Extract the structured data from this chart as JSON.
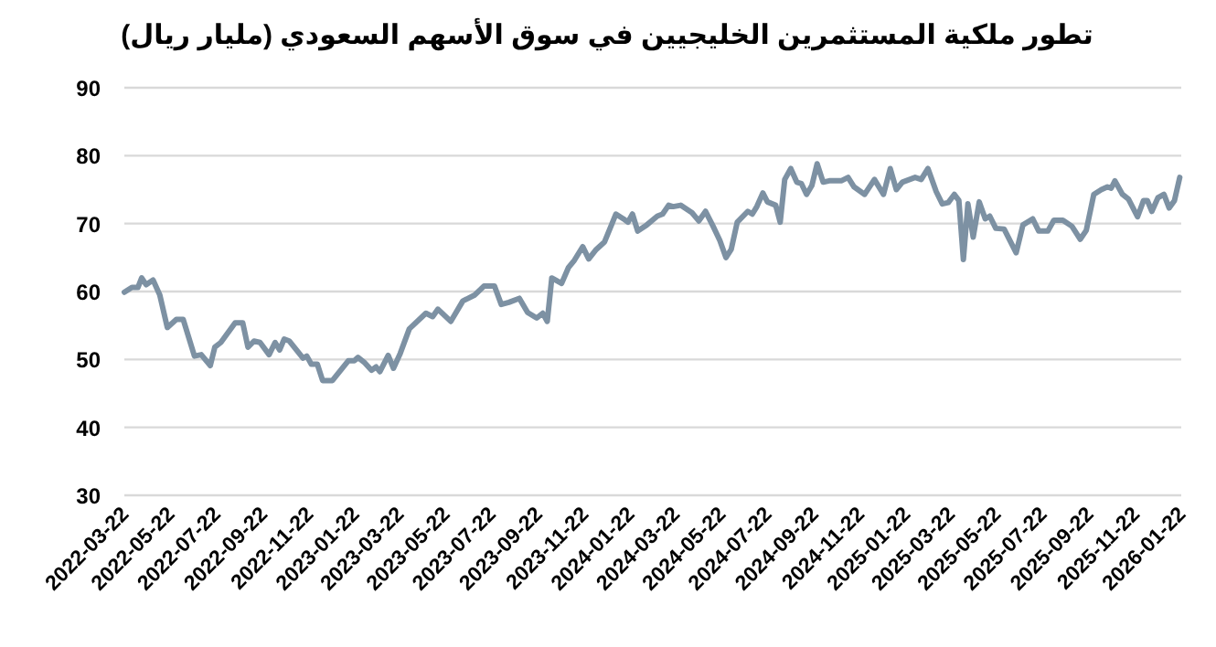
{
  "chart_data": {
    "type": "line",
    "title": "تطور ملكية المستثمرين الخليجيين في سوق الأسهم السعودي (مليار ريال)",
    "x": [
      "2022-03-22",
      "2022-04-01",
      "2022-04-09",
      "2022-04-14",
      "2022-04-20",
      "2022-04-29",
      "2022-05-08",
      "2022-05-18",
      "2022-05-30",
      "2022-06-08",
      "2022-06-23",
      "2022-07-02",
      "2022-07-14",
      "2022-07-20",
      "2022-07-28",
      "2022-08-16",
      "2022-08-26",
      "2022-09-02",
      "2022-09-10",
      "2022-09-18",
      "2022-09-30",
      "2022-10-08",
      "2022-10-14",
      "2022-10-20",
      "2022-10-27",
      "2022-11-14",
      "2022-11-19",
      "2022-11-25",
      "2022-12-03",
      "2022-12-10",
      "2022-12-23",
      "2023-01-13",
      "2023-01-21",
      "2023-01-26",
      "2023-02-03",
      "2023-02-13",
      "2023-02-19",
      "2023-02-24",
      "2023-03-07",
      "2023-03-14",
      "2023-03-23",
      "2023-04-04",
      "2023-04-26",
      "2023-05-05",
      "2023-05-12",
      "2023-05-29",
      "2023-06-14",
      "2023-06-30",
      "2023-07-12",
      "2023-07-26",
      "2023-08-04",
      "2023-08-14",
      "2023-08-28",
      "2023-09-08",
      "2023-09-20",
      "2023-09-28",
      "2023-10-04",
      "2023-10-10",
      "2023-10-23",
      "2023-11-01",
      "2023-11-09",
      "2023-11-20",
      "2023-11-28",
      "2023-12-08",
      "2023-12-19",
      "2024-01-03",
      "2024-01-13",
      "2024-01-19",
      "2024-01-25",
      "2024-02-01",
      "2024-02-13",
      "2024-02-27",
      "2024-03-05",
      "2024-03-13",
      "2024-03-19",
      "2024-03-29",
      "2024-04-13",
      "2024-04-22",
      "2024-05-01",
      "2024-05-11",
      "2024-05-20",
      "2024-05-28",
      "2024-06-04",
      "2024-06-12",
      "2024-06-26",
      "2024-07-02",
      "2024-07-08",
      "2024-07-16",
      "2024-07-22",
      "2024-08-02",
      "2024-08-08",
      "2024-08-14",
      "2024-08-22",
      "2024-08-30",
      "2024-09-05",
      "2024-09-12",
      "2024-09-19",
      "2024-09-26",
      "2024-10-04",
      "2024-10-12",
      "2024-10-28",
      "2024-11-06",
      "2024-11-14",
      "2024-11-28",
      "2024-12-11",
      "2024-12-23",
      "2025-01-01",
      "2025-01-09",
      "2025-01-17",
      "2025-02-03",
      "2025-02-11",
      "2025-02-20",
      "2025-03-03",
      "2025-03-11",
      "2025-03-19",
      "2025-03-27",
      "2025-04-02",
      "2025-04-08",
      "2025-04-14",
      "2025-04-21",
      "2025-04-29",
      "2025-05-07",
      "2025-05-13",
      "2025-05-21",
      "2025-06-01",
      "2025-06-17",
      "2025-06-26",
      "2025-07-09",
      "2025-07-17",
      "2025-07-29",
      "2025-08-06",
      "2025-08-18",
      "2025-08-30",
      "2025-09-10",
      "2025-09-18",
      "2025-09-28",
      "2025-10-08",
      "2025-10-16",
      "2025-10-21",
      "2025-10-26",
      "2025-11-05",
      "2025-11-13",
      "2025-11-25",
      "2025-12-03",
      "2025-12-08",
      "2025-12-14",
      "2025-12-22",
      "2025-12-30",
      "2026-01-06",
      "2026-01-13",
      "2026-01-20"
    ],
    "values": [
      59.9,
      60.6,
      60.6,
      62.0,
      61.0,
      61.7,
      59.5,
      54.7,
      55.9,
      55.9,
      50.5,
      50.7,
      49.1,
      51.8,
      52.5,
      55.4,
      55.4,
      51.8,
      52.7,
      52.5,
      50.7,
      52.5,
      51.4,
      53.0,
      52.7,
      50.2,
      50.5,
      49.3,
      49.3,
      46.9,
      46.9,
      49.8,
      49.8,
      50.3,
      49.6,
      48.4,
      48.9,
      48.2,
      50.6,
      48.7,
      50.9,
      54.5,
      56.8,
      56.3,
      57.4,
      55.6,
      58.6,
      59.5,
      60.8,
      60.8,
      58.1,
      58.4,
      59.0,
      56.9,
      56.1,
      56.8,
      55.6,
      62.0,
      61.2,
      63.5,
      64.6,
      66.6,
      64.8,
      66.2,
      67.3,
      71.4,
      70.7,
      70.2,
      71.4,
      68.9,
      69.8,
      71.1,
      71.4,
      72.7,
      72.5,
      72.7,
      71.6,
      70.4,
      71.8,
      69.6,
      67.5,
      65.0,
      66.2,
      70.2,
      71.8,
      71.4,
      72.5,
      74.5,
      73.2,
      72.7,
      70.2,
      76.5,
      78.1,
      76.1,
      75.9,
      74.3,
      75.6,
      78.8,
      76.1,
      76.3,
      76.3,
      76.8,
      75.4,
      74.3,
      76.5,
      74.3,
      78.1,
      75.0,
      76.1,
      76.8,
      76.5,
      78.1,
      74.7,
      72.9,
      73.1,
      74.3,
      73.4,
      64.7,
      72.9,
      68.0,
      73.2,
      70.7,
      71.1,
      69.3,
      69.2,
      65.7,
      69.8,
      70.7,
      68.9,
      68.9,
      70.5,
      70.5,
      69.6,
      67.7,
      69.0,
      74.3,
      75.0,
      75.4,
      75.2,
      76.3,
      74.3,
      73.6,
      71.0,
      73.4,
      73.4,
      71.8,
      73.8,
      74.3,
      72.3,
      73.4,
      76.8
    ],
    "color": "#7d91a3",
    "xlim": [
      "2022-03-22",
      "2026-01-22"
    ],
    "xticks": [
      "2022-03-22",
      "2022-05-22",
      "2022-07-22",
      "2022-09-22",
      "2022-11-22",
      "2023-01-22",
      "2023-03-22",
      "2023-05-22",
      "2023-07-22",
      "2023-09-22",
      "2023-11-22",
      "2024-01-22",
      "2024-03-22",
      "2024-05-22",
      "2024-07-22",
      "2024-09-22",
      "2024-11-22",
      "2025-01-22",
      "2025-03-22",
      "2025-05-22",
      "2025-07-22",
      "2025-09-22",
      "2025-11-22",
      "2026-01-22"
    ],
    "ylim": [
      30,
      90
    ],
    "yticks": [
      30,
      40,
      50,
      60,
      70,
      80,
      90
    ],
    "grid": "y"
  }
}
